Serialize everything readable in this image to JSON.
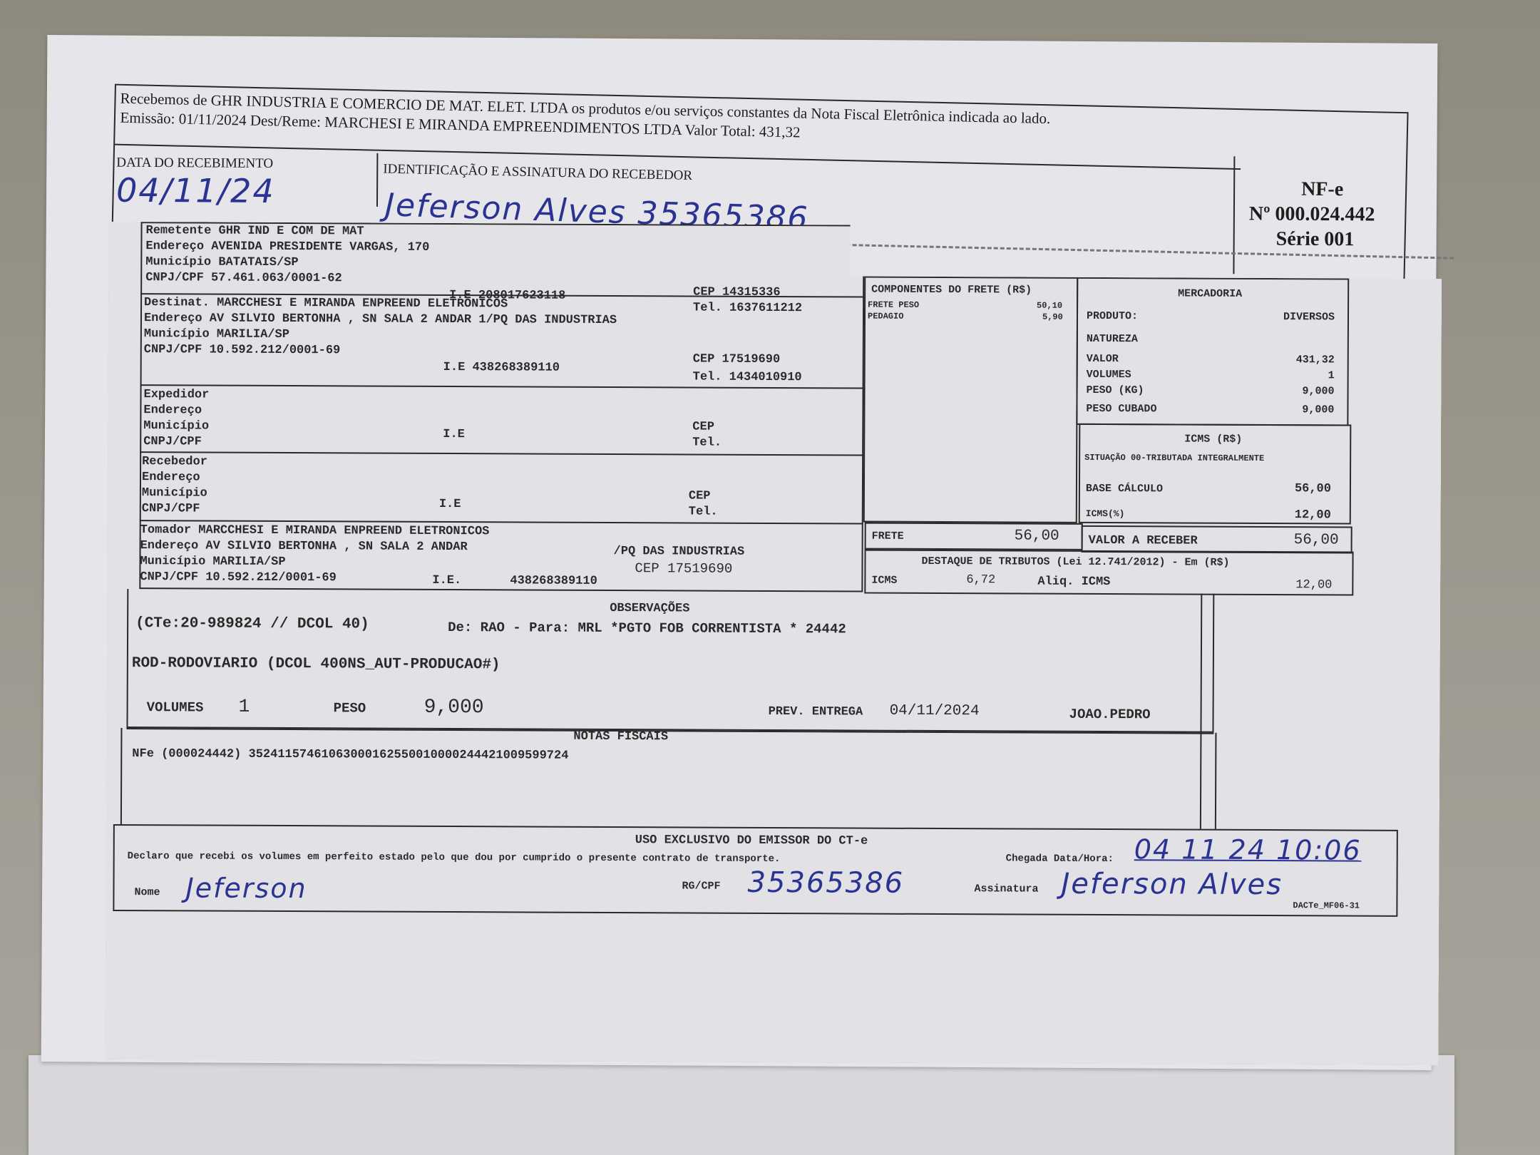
{
  "stub": {
    "line1": "Recebemos de GHR INDUSTRIA E COMERCIO DE MAT. ELET. LTDA os produtos e/ou serviços constantes da Nota Fiscal Eletrônica indicada ao lado.",
    "line2": "Emissão: 01/11/2024  Dest/Reme: MARCHESI E MIRANDA EMPREENDIMENTOS LTDA  Valor Total: 431,32",
    "date_label": "DATA DO RECEBIMENTO",
    "date_value": "04/11/24",
    "id_label": "IDENTIFICAÇÃO E ASSINATURA DO RECEBEDOR",
    "id_value": "Jeferson Alves 35365386",
    "nfe_title": "NF-e",
    "nfe_number": "Nº 000.024.442",
    "nfe_serie": "Série 001"
  },
  "remetente": {
    "label": "Remetente",
    "name": "GHR IND E COM DE MAT",
    "end_label": "Endereço",
    "endereco": "AVENIDA PRESIDENTE VARGAS, 170",
    "mun_label": "Município",
    "municipio": "BATATAIS/SP",
    "cnpj_label": "CNPJ/CPF",
    "cnpj": "57.461.063/0001-62",
    "ie": "I.E 208017623118",
    "cep": "CEP  14315336",
    "tel": "Tel. 1637611212"
  },
  "destinatario": {
    "label": "Destinat.",
    "name": "MARCCHESI E MIRANDA ENPREEND ELETRONICOS",
    "end_label": "Endereço",
    "endereco": "AV SILVIO BERTONHA , SN SALA 2 ANDAR 1/PQ DAS INDUSTRIAS",
    "mun_label": "Município",
    "municipio": "MARILIA/SP",
    "cnpj_label": "CNPJ/CPF",
    "cnpj": "10.592.212/0001-69",
    "ie": "I.E 438268389110",
    "cep": "CEP  17519690",
    "tel": "Tel. 1434010910"
  },
  "expedidor": {
    "label": "Expedidor",
    "end_label": "Endereço",
    "mun_label": "Município",
    "cnpj_label": "CNPJ/CPF",
    "ie": "I.E",
    "cep": "CEP",
    "tel": "Tel."
  },
  "recebedor": {
    "label": "Recebedor",
    "end_label": "Endereço",
    "mun_label": "Município",
    "cnpj_label": "CNPJ/CPF",
    "ie": "I.E",
    "cep": "CEP",
    "tel": "Tel."
  },
  "tomador": {
    "label": "Tomador",
    "name": "MARCCHESI E MIRANDA ENPREEND ELETRONICOS",
    "end_label": "Endereço",
    "endereco": "AV SILVIO BERTONHA , SN SALA 2 ANDAR",
    "bairro": "/PQ DAS INDUSTRIAS",
    "mun_label": "Município",
    "municipio": "MARILIA/SP",
    "cep": "CEP  17519690",
    "cnpj_label": "CNPJ/CPF",
    "cnpj": "10.592.212/0001-69",
    "ie_label": "I.E.",
    "ie": "438268389110"
  },
  "componentes": {
    "title": "COMPONENTES DO FRETE (R$)",
    "items": [
      {
        "label": "FRETE PESO",
        "value": "50,10"
      },
      {
        "label": "PEDAGIO",
        "value": "5,90"
      }
    ],
    "frete_label": "FRETE",
    "frete_value": "56,00"
  },
  "mercadoria": {
    "title": "MERCADORIA",
    "rows": [
      {
        "label": "PRODUTO:",
        "value": "DIVERSOS"
      },
      {
        "label": "NATUREZA",
        "value": ""
      },
      {
        "label": "VALOR",
        "value": "431,32"
      },
      {
        "label": "VOLUMES",
        "value": "1"
      },
      {
        "label": "PESO (KG)",
        "value": "9,000"
      },
      {
        "label": "PESO CUBADO",
        "value": "9,000"
      }
    ]
  },
  "icms": {
    "title": "ICMS (R$)",
    "situacao": "SITUAÇÃO 00-TRIBUTADA INTEGRALMENTE",
    "base_label": "BASE CÁLCULO",
    "base_value": "56,00",
    "pct_label": "ICMS(%)",
    "pct_value": "12,00",
    "receber_label": "VALOR A RECEBER",
    "receber_value": "56,00"
  },
  "destaque": {
    "title": "DESTAQUE DE TRIBUTOS (Lei 12.741/2012) - Em (R$)",
    "icms_label": "ICMS",
    "icms_value": "6,72",
    "aliq_label": "Aliq. ICMS",
    "aliq_value": "12,00"
  },
  "observacoes": {
    "title": "OBSERVAÇÕES",
    "line1a": "(CTe:20-989824 // DCOL 40)",
    "line1b": "De: RAO - Para: MRL *PGTO FOB CORRENTISTA * 24442",
    "line2": "ROD-RODOVIARIO (DCOL 400NS_AUT-PRODUCAO#)",
    "volumes_label": "VOLUMES",
    "volumes_value": "1",
    "peso_label": "PESO",
    "peso_value": "9,000",
    "prev_label": "PREV. ENTREGA",
    "prev_value": "04/11/2024",
    "user": "JOAO.PEDRO"
  },
  "notas": {
    "title": "NOTAS FISCAIS",
    "line": "NFe (000024442) 35241157461063000162550010000244421009599724"
  },
  "uso": {
    "title": "USO EXCLUSIVO DO EMISSOR DO CT-e",
    "declaro": "Declaro que recebi os volumes em perfeito estado pelo que dou por cumprido o presente contrato de transporte.",
    "chegada_label": "Chegada Data/Hora:",
    "chegada_value": "04 11 24  10:06",
    "nome_label": "Nome",
    "nome_value": "Jeferson",
    "rg_label": "RG/CPF",
    "rg_value": "35365386",
    "assinatura_label": "Assinatura",
    "assinatura_value": "Jeferson Alves",
    "form_code": "DACTe_MF06-31"
  }
}
